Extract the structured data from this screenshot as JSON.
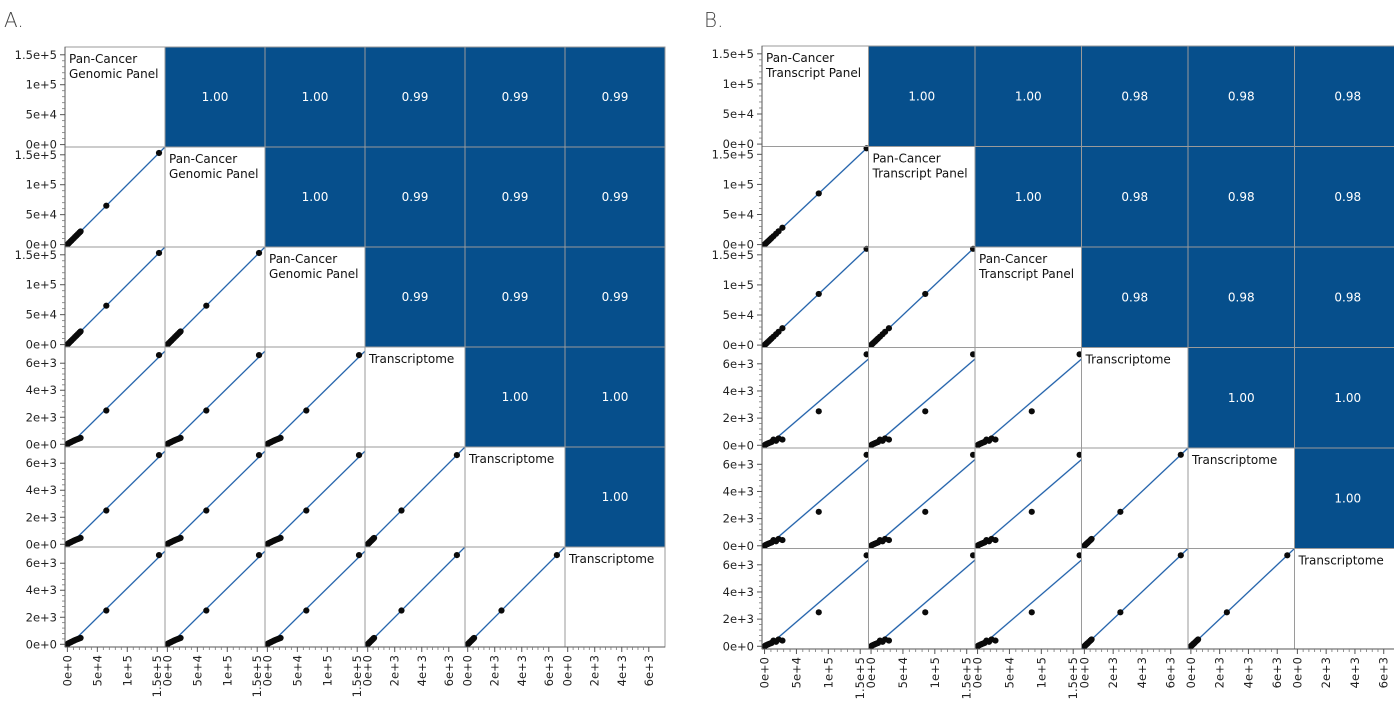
{
  "colors": {
    "correlation_fill": "#064f8c",
    "correlation_text": "#ffffff",
    "fit_line": "#1f5fa8",
    "confidence_band": "#a9c4e4",
    "point": "#0a0a0a",
    "grid_border": "#9a9a9a"
  },
  "panels": [
    {
      "letter": "A.",
      "variables": [
        {
          "label_lines": [
            "Pan-Cancer",
            "Genomic Panel"
          ],
          "ticks": [
            "0e+0",
            "5e+4",
            "1e+5",
            "1.5e+5"
          ]
        },
        {
          "label_lines": [
            "Pan-Cancer",
            "Genomic Panel"
          ],
          "ticks": [
            "0e+0",
            "5e+4",
            "1e+5",
            "1.5e+5"
          ]
        },
        {
          "label_lines": [
            "Pan-Cancer",
            "Genomic Panel"
          ],
          "ticks": [
            "0e+0",
            "5e+4",
            "1e+5",
            "1.5e+5"
          ]
        },
        {
          "label_lines": [
            "Transcriptome"
          ],
          "ticks": [
            "0e+0",
            "2e+3",
            "4e+3",
            "6e+3"
          ]
        },
        {
          "label_lines": [
            "Transcriptome"
          ],
          "ticks": [
            "0e+0",
            "2e+3",
            "4e+3",
            "6e+3"
          ]
        },
        {
          "label_lines": [
            "Transcriptome"
          ],
          "ticks": [
            "0e+0",
            "2e+3",
            "4e+3",
            "6e+3"
          ]
        }
      ],
      "correlations": [
        [
          "",
          "1.00",
          "1.00",
          "0.99",
          "0.99",
          "0.99"
        ],
        [
          "",
          "",
          "1.00",
          "0.99",
          "0.99",
          "0.99"
        ],
        [
          "",
          "",
          "",
          "0.99",
          "0.99",
          "0.99"
        ],
        [
          "",
          "",
          "",
          "",
          "1.00",
          "1.00"
        ],
        [
          "",
          "",
          "",
          "",
          "",
          "1.00"
        ],
        [
          "",
          "",
          "",
          "",
          "",
          ""
        ]
      ]
    },
    {
      "letter": "B.",
      "variables": [
        {
          "label_lines": [
            "Pan-Cancer",
            "Transcript Panel"
          ],
          "ticks": [
            "0e+0",
            "5e+4",
            "1e+5",
            "1.5e+5"
          ]
        },
        {
          "label_lines": [
            "Pan-Cancer",
            "Transcript Panel"
          ],
          "ticks": [
            "0e+0",
            "5e+4",
            "1e+5",
            "1.5e+5"
          ]
        },
        {
          "label_lines": [
            "Pan-Cancer",
            "Transcript Panel"
          ],
          "ticks": [
            "0e+0",
            "5e+4",
            "1e+5",
            "1.5e+5"
          ]
        },
        {
          "label_lines": [
            "Transcriptome"
          ],
          "ticks": [
            "0e+0",
            "2e+3",
            "4e+3",
            "6e+3"
          ]
        },
        {
          "label_lines": [
            "Transcriptome"
          ],
          "ticks": [
            "0e+0",
            "2e+3",
            "4e+3",
            "6e+3"
          ]
        },
        {
          "label_lines": [
            "Transcriptome"
          ],
          "ticks": [
            "0e+0",
            "2e+3",
            "4e+3",
            "6e+3"
          ]
        }
      ],
      "correlations": [
        [
          "",
          "1.00",
          "1.00",
          "0.98",
          "0.98",
          "0.98"
        ],
        [
          "",
          "",
          "1.00",
          "0.98",
          "0.98",
          "0.98"
        ],
        [
          "",
          "",
          "",
          "0.98",
          "0.98",
          "0.98"
        ],
        [
          "",
          "",
          "",
          "",
          "1.00",
          "1.00"
        ],
        [
          "",
          "",
          "",
          "",
          "",
          "1.00"
        ],
        [
          "",
          "",
          "",
          "",
          "",
          ""
        ]
      ]
    }
  ],
  "chart_data": [
    {
      "type": "scatter",
      "title": "",
      "grid": false,
      "matrix_size": 6,
      "axis_ranges": [
        [
          -4000,
          163000
        ],
        [
          -4000,
          163000
        ],
        [
          -4000,
          163000
        ],
        [
          -200,
          7200
        ],
        [
          -200,
          7200
        ],
        [
          -200,
          7200
        ]
      ],
      "observations": [
        [
          500,
          500,
          500,
          30,
          30,
          30
        ],
        [
          1500,
          1500,
          1500,
          60,
          60,
          60
        ],
        [
          3000,
          3000,
          3000,
          100,
          100,
          100
        ],
        [
          5000,
          5000,
          5000,
          140,
          140,
          140
        ],
        [
          7000,
          7000,
          7000,
          180,
          180,
          180
        ],
        [
          9000,
          9000,
          9000,
          230,
          230,
          230
        ],
        [
          11000,
          11000,
          11000,
          270,
          270,
          270
        ],
        [
          13000,
          13000,
          13000,
          310,
          310,
          310
        ],
        [
          15000,
          15000,
          15000,
          350,
          350,
          350
        ],
        [
          17500,
          17500,
          17500,
          390,
          390,
          390
        ],
        [
          20000,
          20000,
          20000,
          430,
          430,
          430
        ],
        [
          22000,
          22000,
          22000,
          470,
          470,
          470
        ],
        [
          65000,
          65000,
          65000,
          2500,
          2500,
          2500
        ],
        [
          153000,
          153000,
          153000,
          6600,
          6600,
          6600
        ]
      ]
    },
    {
      "type": "scatter",
      "title": "",
      "grid": false,
      "matrix_size": 6,
      "axis_ranges": [
        [
          -4000,
          163000
        ],
        [
          -4000,
          163000
        ],
        [
          -4000,
          163000
        ],
        [
          -200,
          7200
        ],
        [
          -200,
          7200
        ],
        [
          -200,
          7200
        ]
      ],
      "observations": [
        [
          500,
          500,
          500,
          20,
          20,
          20
        ],
        [
          1500,
          1500,
          1500,
          50,
          50,
          50
        ],
        [
          3000,
          3000,
          3000,
          90,
          90,
          90
        ],
        [
          5000,
          5000,
          5000,
          130,
          130,
          130
        ],
        [
          7000,
          7000,
          7000,
          170,
          170,
          170
        ],
        [
          9000,
          9000,
          9000,
          210,
          210,
          210
        ],
        [
          11000,
          11000,
          11000,
          250,
          250,
          250
        ],
        [
          14000,
          14000,
          14000,
          420,
          420,
          420
        ],
        [
          18000,
          18000,
          18000,
          330,
          330,
          330
        ],
        [
          22000,
          22000,
          22000,
          500,
          500,
          500
        ],
        [
          28000,
          28000,
          28000,
          420,
          420,
          420
        ],
        [
          85000,
          85000,
          85000,
          2500,
          2500,
          2500
        ],
        [
          160000,
          160000,
          160000,
          6700,
          6700,
          6700
        ]
      ]
    }
  ]
}
